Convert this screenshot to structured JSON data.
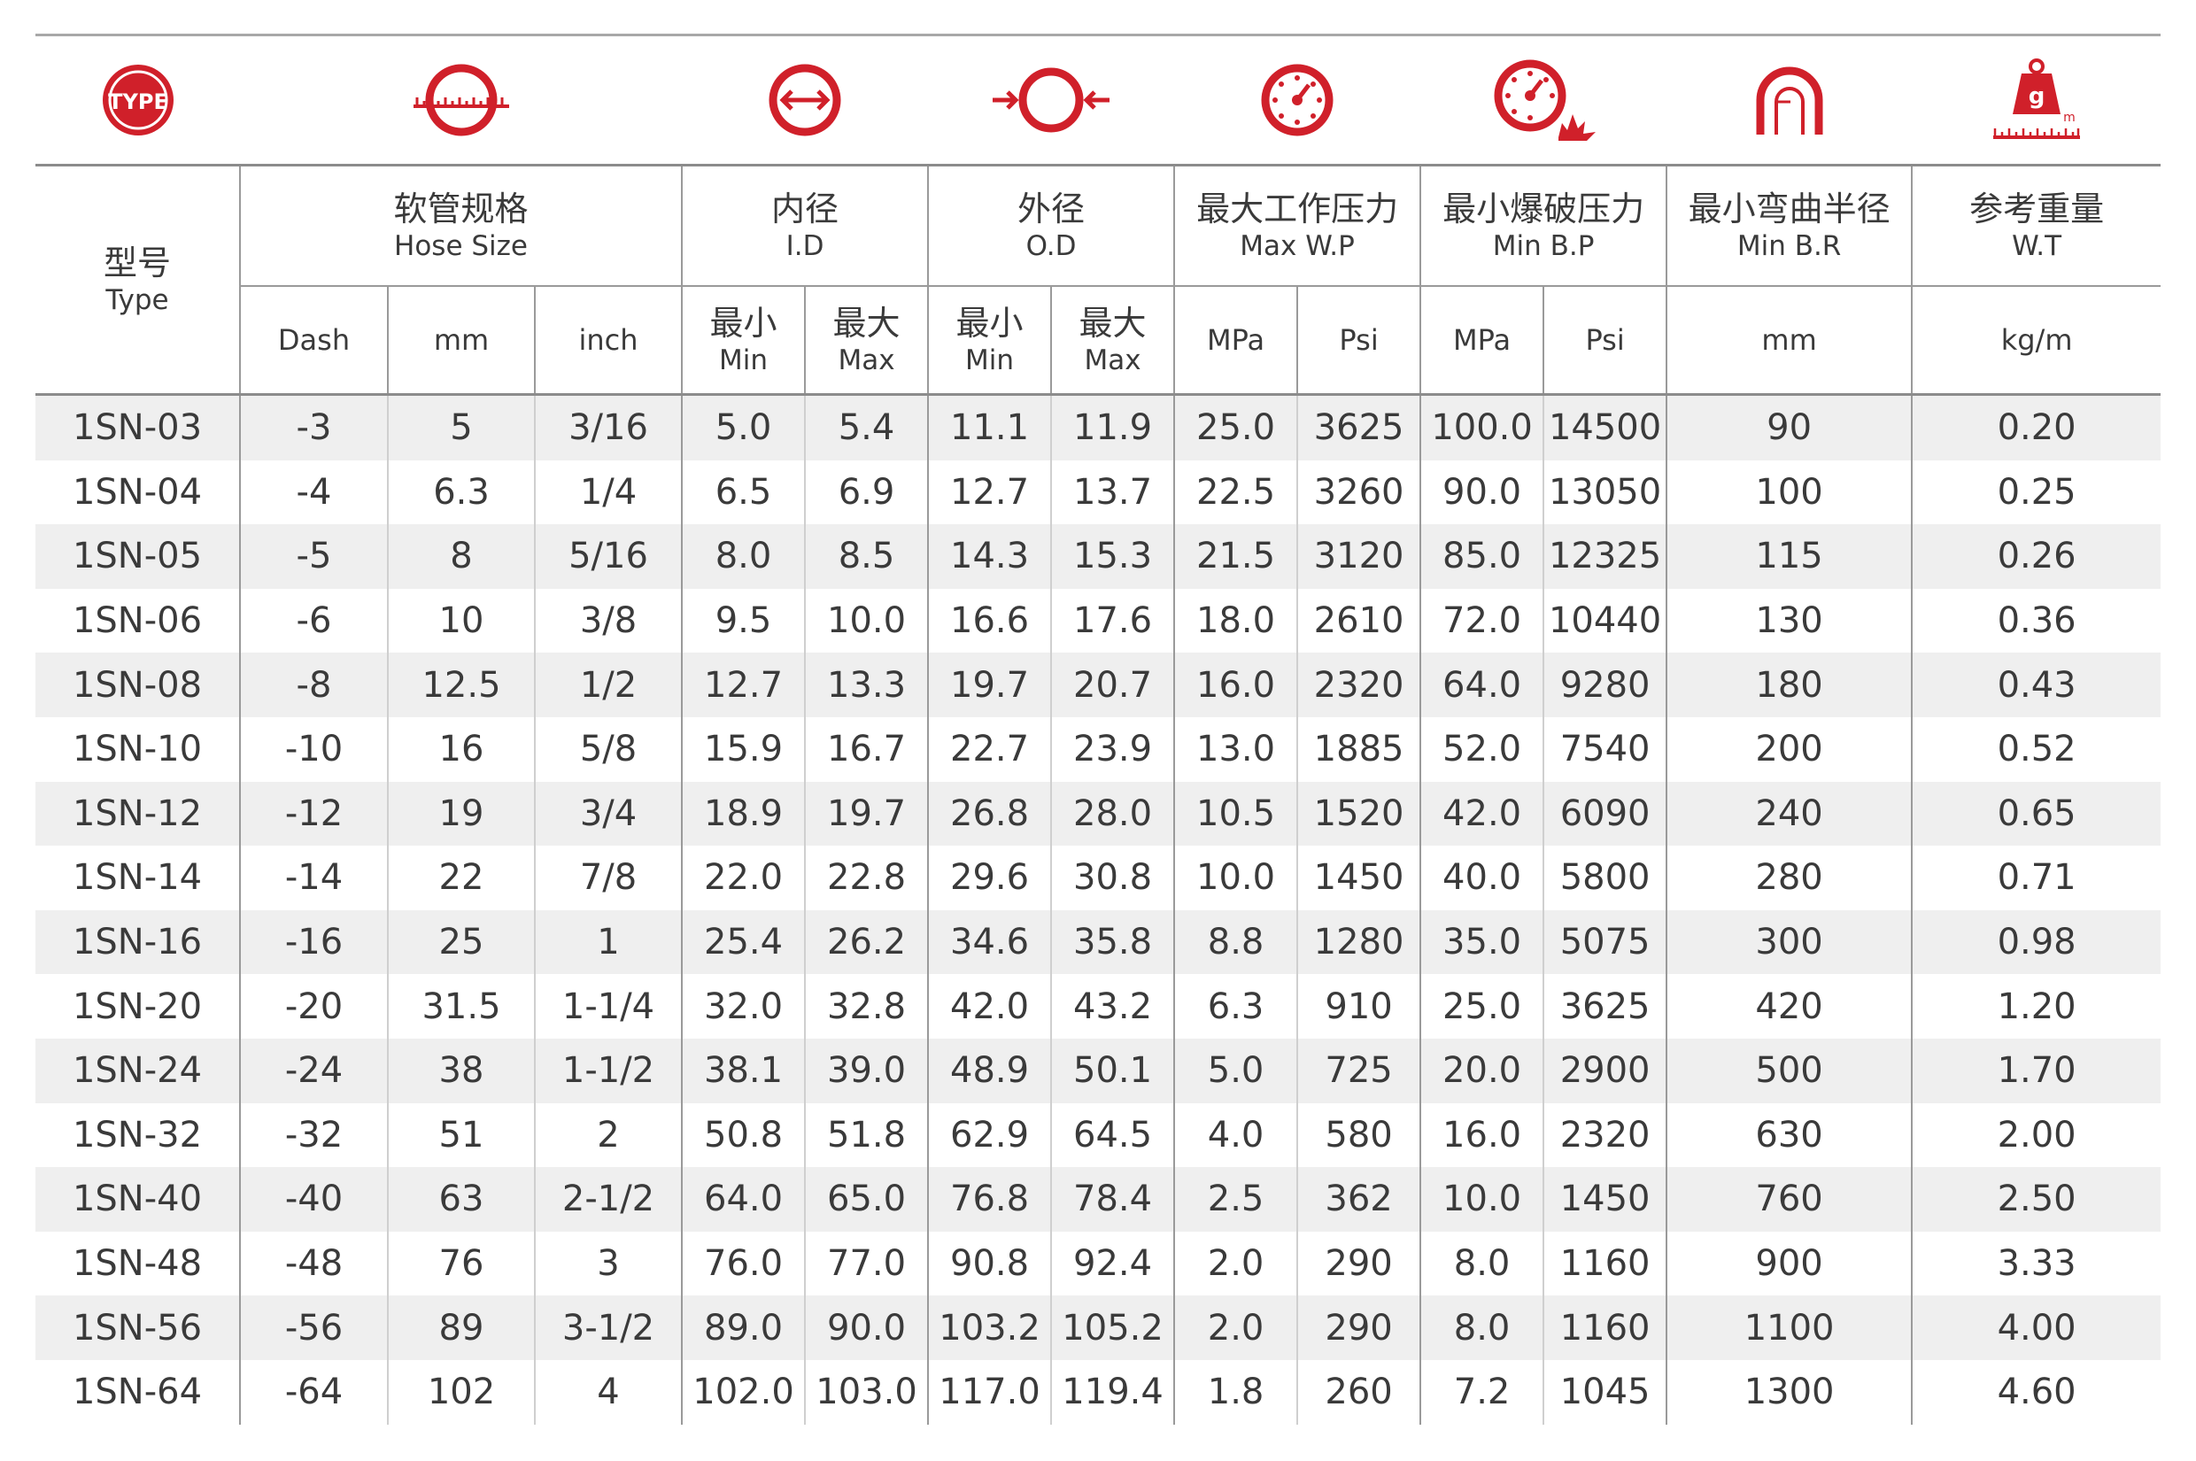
{
  "headers": {
    "type": {
      "cn": "型号",
      "en": "Type"
    },
    "hose_size": {
      "cn": "软管规格",
      "en": "Hose Size",
      "units": [
        "Dash",
        "mm",
        "inch"
      ]
    },
    "id": {
      "cn": "内径",
      "en": "I.D"
    },
    "od": {
      "cn": "外径",
      "en": "O.D"
    },
    "min": {
      "cn": "最小",
      "en": "Min"
    },
    "max": {
      "cn": "最大",
      "en": "Max"
    },
    "mwp": {
      "cn": "最大工作压力",
      "en": "Max W.P",
      "units": [
        "MPa",
        "Psi"
      ]
    },
    "mbp": {
      "cn": "最小爆破压力",
      "en": "Min B.P",
      "units": [
        "MPa",
        "Psi"
      ]
    },
    "mbr": {
      "cn": "最小弯曲半径",
      "en": "Min B.R",
      "unit": "mm"
    },
    "wt": {
      "cn": "参考重量",
      "en": "W.T",
      "unit": "kg/m"
    }
  },
  "icons": [
    {
      "name": "type-icon",
      "text": "TYPE"
    },
    {
      "name": "hose-size-icon"
    },
    {
      "name": "inner-diameter-icon"
    },
    {
      "name": "outer-diameter-icon"
    },
    {
      "name": "working-pressure-gauge-icon"
    },
    {
      "name": "burst-pressure-gauge-icon"
    },
    {
      "name": "bend-radius-icon"
    },
    {
      "name": "weight-icon",
      "text": "g",
      "sub": "m"
    }
  ],
  "colors": {
    "accent": "#d0202a",
    "row_shade": "#efefef",
    "rule": "#8c8c8c"
  },
  "rows": [
    [
      "1SN-03",
      "-3",
      "5",
      "3/16",
      "5.0",
      "5.4",
      "11.1",
      "11.9",
      "25.0",
      "3625",
      "100.0",
      "14500",
      "90",
      "0.20"
    ],
    [
      "1SN-04",
      "-4",
      "6.3",
      "1/4",
      "6.5",
      "6.9",
      "12.7",
      "13.7",
      "22.5",
      "3260",
      "90.0",
      "13050",
      "100",
      "0.25"
    ],
    [
      "1SN-05",
      "-5",
      "8",
      "5/16",
      "8.0",
      "8.5",
      "14.3",
      "15.3",
      "21.5",
      "3120",
      "85.0",
      "12325",
      "115",
      "0.26"
    ],
    [
      "1SN-06",
      "-6",
      "10",
      "3/8",
      "9.5",
      "10.0",
      "16.6",
      "17.6",
      "18.0",
      "2610",
      "72.0",
      "10440",
      "130",
      "0.36"
    ],
    [
      "1SN-08",
      "-8",
      "12.5",
      "1/2",
      "12.7",
      "13.3",
      "19.7",
      "20.7",
      "16.0",
      "2320",
      "64.0",
      "9280",
      "180",
      "0.43"
    ],
    [
      "1SN-10",
      "-10",
      "16",
      "5/8",
      "15.9",
      "16.7",
      "22.7",
      "23.9",
      "13.0",
      "1885",
      "52.0",
      "7540",
      "200",
      "0.52"
    ],
    [
      "1SN-12",
      "-12",
      "19",
      "3/4",
      "18.9",
      "19.7",
      "26.8",
      "28.0",
      "10.5",
      "1520",
      "42.0",
      "6090",
      "240",
      "0.65"
    ],
    [
      "1SN-14",
      "-14",
      "22",
      "7/8",
      "22.0",
      "22.8",
      "29.6",
      "30.8",
      "10.0",
      "1450",
      "40.0",
      "5800",
      "280",
      "0.71"
    ],
    [
      "1SN-16",
      "-16",
      "25",
      "1",
      "25.4",
      "26.2",
      "34.6",
      "35.8",
      "8.8",
      "1280",
      "35.0",
      "5075",
      "300",
      "0.98"
    ],
    [
      "1SN-20",
      "-20",
      "31.5",
      "1-1/4",
      "32.0",
      "32.8",
      "42.0",
      "43.2",
      "6.3",
      "910",
      "25.0",
      "3625",
      "420",
      "1.20"
    ],
    [
      "1SN-24",
      "-24",
      "38",
      "1-1/2",
      "38.1",
      "39.0",
      "48.9",
      "50.1",
      "5.0",
      "725",
      "20.0",
      "2900",
      "500",
      "1.70"
    ],
    [
      "1SN-32",
      "-32",
      "51",
      "2",
      "50.8",
      "51.8",
      "62.9",
      "64.5",
      "4.0",
      "580",
      "16.0",
      "2320",
      "630",
      "2.00"
    ],
    [
      "1SN-40",
      "-40",
      "63",
      "2-1/2",
      "64.0",
      "65.0",
      "76.8",
      "78.4",
      "2.5",
      "362",
      "10.0",
      "1450",
      "760",
      "2.50"
    ],
    [
      "1SN-48",
      "-48",
      "76",
      "3",
      "76.0",
      "77.0",
      "90.8",
      "92.4",
      "2.0",
      "290",
      "8.0",
      "1160",
      "900",
      "3.33"
    ],
    [
      "1SN-56",
      "-56",
      "89",
      "3-1/2",
      "89.0",
      "90.0",
      "103.2",
      "105.2",
      "2.0",
      "290",
      "8.0",
      "1160",
      "1100",
      "4.00"
    ],
    [
      "1SN-64",
      "-64",
      "102",
      "4",
      "102.0",
      "103.0",
      "117.0",
      "119.4",
      "1.8",
      "260",
      "7.2",
      "1045",
      "1300",
      "4.60"
    ]
  ]
}
